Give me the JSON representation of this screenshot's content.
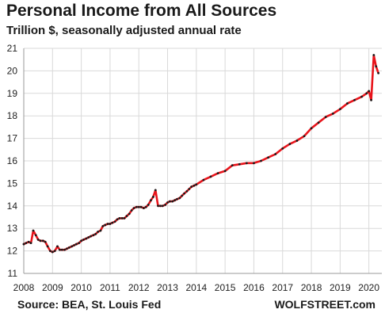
{
  "chart_data": {
    "type": "line",
    "title": "Personal Income from All Sources",
    "subtitle": "Trillion $, seasonally adjusted annual rate",
    "source": "Source: BEA, St. Louis Fed",
    "brand": "WOLFSTREET.com",
    "xlabel": "",
    "ylabel": "",
    "xlim": [
      2008.0,
      2020.45
    ],
    "ylim": [
      11,
      21
    ],
    "x_ticks": [
      2008,
      2009,
      2010,
      2011,
      2012,
      2013,
      2014,
      2015,
      2016,
      2017,
      2018,
      2019,
      2020
    ],
    "y_ticks": [
      11,
      12,
      13,
      14,
      15,
      16,
      17,
      18,
      19,
      20,
      21
    ],
    "grid": true,
    "legend": "none",
    "line_color": "#e8141b",
    "marker_color": "#1a1a1a",
    "series": [
      {
        "x": [
          2008.0,
          2008.08,
          2008.17,
          2008.25,
          2008.33,
          2008.42,
          2008.5,
          2008.58,
          2008.67,
          2008.75,
          2008.83,
          2008.92,
          2009.0,
          2009.08,
          2009.17,
          2009.25,
          2009.33,
          2009.42,
          2009.5,
          2009.58,
          2009.67,
          2009.75,
          2009.83,
          2009.92,
          2010.0,
          2010.08,
          2010.17,
          2010.25,
          2010.33,
          2010.42,
          2010.5,
          2010.58,
          2010.67,
          2010.75,
          2010.83,
          2010.92,
          2011.0,
          2011.08,
          2011.17,
          2011.25,
          2011.33,
          2011.42,
          2011.5,
          2011.58,
          2011.67,
          2011.75,
          2011.83,
          2011.92,
          2012.0,
          2012.08,
          2012.17,
          2012.25,
          2012.33,
          2012.42,
          2012.5,
          2012.58,
          2012.67,
          2012.75,
          2012.83,
          2012.92,
          2013.0,
          2013.08,
          2013.17,
          2013.25,
          2013.33,
          2013.42,
          2013.5,
          2013.58,
          2013.67,
          2013.75,
          2013.83,
          2013.92,
          2014.0,
          2014.25,
          2014.5,
          2014.75,
          2015.0,
          2015.25,
          2015.5,
          2015.75,
          2016.0,
          2016.25,
          2016.5,
          2016.75,
          2017.0,
          2017.25,
          2017.5,
          2017.75,
          2018.0,
          2018.25,
          2018.5,
          2018.75,
          2019.0,
          2019.25,
          2019.5,
          2019.75,
          2019.92,
          2020.0,
          2020.08,
          2020.17,
          2020.25,
          2020.33
        ],
        "y": [
          12.3,
          12.35,
          12.4,
          12.35,
          12.9,
          12.7,
          12.5,
          12.45,
          12.45,
          12.4,
          12.2,
          12.0,
          11.95,
          12.0,
          12.2,
          12.05,
          12.05,
          12.05,
          12.1,
          12.15,
          12.2,
          12.25,
          12.3,
          12.35,
          12.45,
          12.5,
          12.55,
          12.6,
          12.65,
          12.7,
          12.75,
          12.85,
          12.9,
          13.1,
          13.15,
          13.2,
          13.2,
          13.25,
          13.3,
          13.4,
          13.45,
          13.45,
          13.45,
          13.55,
          13.65,
          13.8,
          13.9,
          13.95,
          13.95,
          13.95,
          13.9,
          13.95,
          14.05,
          14.25,
          14.4,
          14.7,
          14.0,
          14.0,
          14.0,
          14.05,
          14.15,
          14.2,
          14.2,
          14.25,
          14.3,
          14.35,
          14.45,
          14.55,
          14.65,
          14.75,
          14.85,
          14.9,
          14.95,
          15.15,
          15.3,
          15.45,
          15.55,
          15.8,
          15.85,
          15.9,
          15.9,
          16.0,
          16.15,
          16.3,
          16.55,
          16.75,
          16.9,
          17.1,
          17.45,
          17.7,
          17.95,
          18.1,
          18.3,
          18.55,
          18.7,
          18.85,
          19.0,
          19.1,
          18.7,
          20.7,
          20.2,
          19.9
        ]
      }
    ]
  }
}
